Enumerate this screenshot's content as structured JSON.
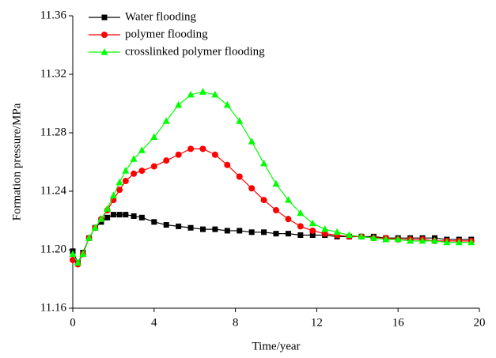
{
  "chart_data": {
    "type": "line",
    "x_label": "Time/year",
    "y_label": "Formation pressure/MPa",
    "x": [
      0,
      0.25,
      0.5,
      0.8,
      1.1,
      1.4,
      1.7,
      2,
      2.3,
      2.6,
      3,
      3.4,
      4,
      4.6,
      5.2,
      5.8,
      6.4,
      7,
      7.6,
      8.2,
      8.8,
      9.4,
      10,
      10.6,
      11.2,
      11.8,
      12.4,
      13,
      13.6,
      14.2,
      14.8,
      15.4,
      16,
      16.6,
      17.2,
      17.8,
      18.4,
      19,
      19.6
    ],
    "series": [
      {
        "name": "Water flooding",
        "color": "#000000",
        "marker": "square",
        "values": [
          11.199,
          11.191,
          11.198,
          11.208,
          11.215,
          11.219,
          11.222,
          11.224,
          11.224,
          11.224,
          11.223,
          11.222,
          11.219,
          11.217,
          11.216,
          11.215,
          11.214,
          11.214,
          11.213,
          11.213,
          11.212,
          11.212,
          11.211,
          11.211,
          11.21,
          11.21,
          11.21,
          11.209,
          11.209,
          11.209,
          11.209,
          11.208,
          11.208,
          11.208,
          11.208,
          11.208,
          11.207,
          11.207,
          11.207
        ]
      },
      {
        "name": "polymer flooding",
        "color": "#ff0000",
        "marker": "circle",
        "values": [
          11.193,
          11.19,
          11.197,
          11.208,
          11.215,
          11.221,
          11.227,
          11.234,
          11.241,
          11.247,
          11.252,
          11.254,
          11.257,
          11.261,
          11.265,
          11.269,
          11.269,
          11.265,
          11.258,
          11.25,
          11.242,
          11.234,
          11.227,
          11.221,
          11.216,
          11.213,
          11.211,
          11.21,
          11.209,
          11.209,
          11.208,
          11.208,
          11.207,
          11.207,
          11.207,
          11.206,
          11.206,
          11.206,
          11.206
        ]
      },
      {
        "name": "crosslinked polymer flooding",
        "color": "#00ff00",
        "marker": "triangle",
        "values": [
          11.197,
          11.191,
          11.197,
          11.208,
          11.215,
          11.221,
          11.228,
          11.237,
          11.246,
          11.254,
          11.262,
          11.268,
          11.277,
          11.288,
          11.299,
          11.306,
          11.308,
          11.306,
          11.299,
          11.288,
          11.274,
          11.259,
          11.245,
          11.234,
          11.225,
          11.218,
          11.214,
          11.212,
          11.21,
          11.209,
          11.208,
          11.207,
          11.207,
          11.206,
          11.206,
          11.206,
          11.205,
          11.205,
          11.205
        ]
      }
    ],
    "xlim": [
      0,
      20
    ],
    "xticks": [
      0,
      4,
      8,
      12,
      16,
      20
    ],
    "ylim": [
      11.16,
      11.36
    ],
    "yticks": [
      11.16,
      {
        "value": 11.2,
        "label": "11.20"
      },
      11.24,
      11.28,
      11.32,
      11.36
    ],
    "legend": "upper left",
    "grid": false
  }
}
